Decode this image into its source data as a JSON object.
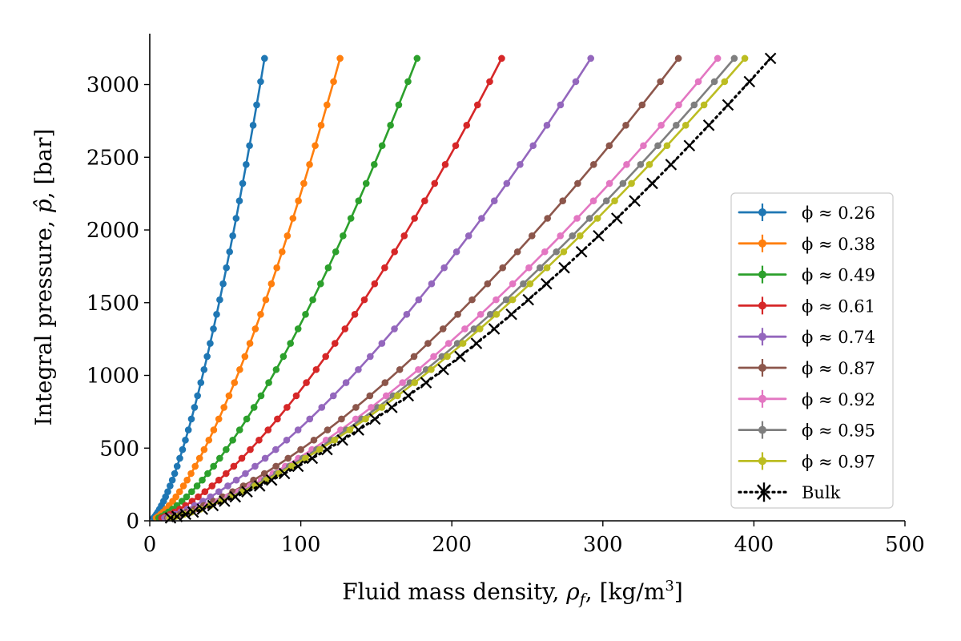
{
  "chart_data": {
    "type": "line",
    "title": "",
    "xlabel": "Fluid mass density, ρ_f, [kg/m³]",
    "ylabel": "Integral pressure, p̂, [bar]",
    "xlim": [
      0,
      500
    ],
    "ylim": [
      0,
      3350
    ],
    "xticks": [
      0,
      100,
      200,
      300,
      400,
      500
    ],
    "yticks": [
      0,
      500,
      1000,
      1500,
      2000,
      2500,
      3000
    ],
    "grid": false,
    "legend_position": "center-right",
    "pressure_levels": [
      20,
      30,
      45,
      60,
      80,
      105,
      135,
      165,
      200,
      240,
      280,
      325,
      375,
      430,
      490,
      555,
      625,
      700,
      780,
      860,
      950,
      1040,
      1130,
      1220,
      1320,
      1420,
      1520,
      1630,
      1740,
      1850,
      1960,
      2080,
      2200,
      2320,
      2450,
      2580,
      2720,
      2860,
      3020,
      3180
    ],
    "series": [
      {
        "name": "ϕ ≈ 0.26",
        "color": "#1f77b4",
        "marker": "dot",
        "linestyle": "solid",
        "x_at_max": 76
      },
      {
        "name": "ϕ ≈ 0.38",
        "color": "#ff7f0e",
        "marker": "dot",
        "linestyle": "solid",
        "x_at_max": 126
      },
      {
        "name": "ϕ ≈ 0.49",
        "color": "#2ca02c",
        "marker": "dot",
        "linestyle": "solid",
        "x_at_max": 177
      },
      {
        "name": "ϕ ≈ 0.61",
        "color": "#d62728",
        "marker": "dot",
        "linestyle": "solid",
        "x_at_max": 233
      },
      {
        "name": "ϕ ≈ 0.74",
        "color": "#9467bd",
        "marker": "dot",
        "linestyle": "solid",
        "x_at_max": 292
      },
      {
        "name": "ϕ ≈ 0.87",
        "color": "#8c564b",
        "marker": "dot",
        "linestyle": "solid",
        "x_at_max": 350
      },
      {
        "name": "ϕ ≈ 0.92",
        "color": "#e377c2",
        "marker": "dot",
        "linestyle": "solid",
        "x_at_max": 376
      },
      {
        "name": "ϕ ≈ 0.95",
        "color": "#7f7f7f",
        "marker": "dot",
        "linestyle": "solid",
        "x_at_max": 387
      },
      {
        "name": "ϕ ≈ 0.97",
        "color": "#bcbd22",
        "marker": "dot",
        "linestyle": "solid",
        "x_at_max": 394
      },
      {
        "name": "Bulk",
        "color": "#000000",
        "marker": "x",
        "linestyle": "dotted",
        "x_at_max": 411
      }
    ]
  }
}
